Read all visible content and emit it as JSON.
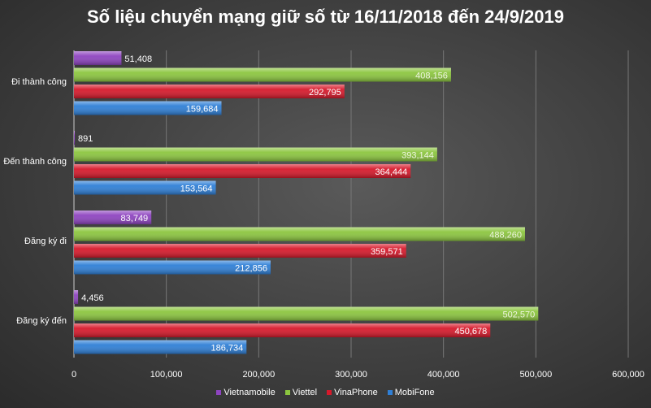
{
  "chart_data": {
    "type": "bar",
    "orientation": "horizontal",
    "title": "Số liệu chuyển mạng giữ số từ 16/11/2018 đến 24/9/2019",
    "categories": [
      "Đi thành công",
      "Đến thành công",
      "Đăng ký đi",
      "Đăng ký đến"
    ],
    "series": [
      {
        "name": "Vietnamobile",
        "color": "#8e44c0",
        "values": [
          51408,
          891,
          83749,
          4456
        ],
        "labels": [
          "51,408",
          "891",
          "83,749",
          "4,456"
        ]
      },
      {
        "name": "Viettel",
        "color": "#8cc63f",
        "values": [
          408156,
          393144,
          488260,
          502570
        ],
        "labels": [
          "408,156",
          "393,144",
          "488,260",
          "502,570"
        ]
      },
      {
        "name": "VinaPhone",
        "color": "#d7192b",
        "values": [
          292795,
          364444,
          359571,
          450678
        ],
        "labels": [
          "292,795",
          "364,444",
          "359,571",
          "450,678"
        ]
      },
      {
        "name": "MobiFone",
        "color": "#2f7fd6",
        "values": [
          159684,
          153564,
          212856,
          186734
        ],
        "labels": [
          "159,684",
          "153,564",
          "212,856",
          "186,734"
        ]
      }
    ],
    "xlim": [
      0,
      600000
    ],
    "ticks": [
      "0",
      "100,000",
      "200,000",
      "300,000",
      "400,000",
      "500,000",
      "600,000"
    ],
    "tick_values": [
      0,
      100000,
      200000,
      300000,
      400000,
      500000,
      600000
    ],
    "grid": true,
    "legend": "bottom"
  }
}
